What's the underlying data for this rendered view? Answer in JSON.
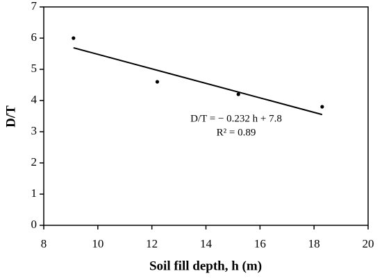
{
  "chart_data": {
    "type": "scatter",
    "x_label": "Soil fill depth, h (m)",
    "y_label": "D/T",
    "x": [
      9.1,
      12.2,
      15.2,
      18.3
    ],
    "values": [
      6.0,
      4.6,
      4.2,
      3.8
    ],
    "color": "#000000",
    "trendline": {
      "x": [
        9.1,
        18.3
      ],
      "values": [
        5.69,
        3.55
      ]
    },
    "annotations": [
      "D/T = − 0.232 h + 7.8",
      "R² = 0.89"
    ],
    "xlim": [
      8,
      20
    ],
    "xticks": [
      8,
      10,
      12,
      14,
      16,
      18,
      20
    ],
    "ylim": [
      0,
      7
    ],
    "yticks": [
      0,
      1,
      2,
      3,
      4,
      5,
      6,
      7
    ]
  }
}
